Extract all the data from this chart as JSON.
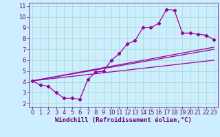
{
  "xlabel": "Windchill (Refroidissement éolien,°C)",
  "bg_color": "#cceeff",
  "grid_color": "#aaddcc",
  "line_color": "#990099",
  "xlim": [
    -0.5,
    23.5
  ],
  "ylim": [
    1.7,
    11.3
  ],
  "xticks": [
    0,
    1,
    2,
    3,
    4,
    5,
    6,
    7,
    8,
    9,
    10,
    11,
    12,
    13,
    14,
    15,
    16,
    17,
    18,
    19,
    20,
    21,
    22,
    23
  ],
  "yticks": [
    2,
    3,
    4,
    5,
    6,
    7,
    8,
    9,
    10,
    11
  ],
  "series1_x": [
    0,
    1,
    2,
    3,
    4,
    5,
    6,
    7,
    8,
    9,
    10,
    11,
    12,
    13,
    14,
    15,
    16,
    17,
    18,
    19,
    20,
    21,
    22,
    23
  ],
  "series1_y": [
    4.1,
    3.7,
    3.6,
    3.0,
    2.5,
    2.5,
    2.4,
    4.2,
    4.9,
    5.0,
    6.0,
    6.6,
    7.5,
    7.8,
    9.0,
    9.0,
    9.4,
    10.7,
    10.6,
    8.5,
    8.5,
    8.4,
    8.3,
    7.9
  ],
  "series2_x": [
    0,
    23
  ],
  "series2_y": [
    4.1,
    7.0
  ],
  "series3_x": [
    0,
    23
  ],
  "series3_y": [
    4.1,
    7.2
  ],
  "series4_x": [
    0,
    23
  ],
  "series4_y": [
    4.1,
    6.0
  ],
  "tick_fontsize": 6.0,
  "xlabel_fontsize": 6.5,
  "marker_size": 2.2,
  "line_width": 0.9
}
